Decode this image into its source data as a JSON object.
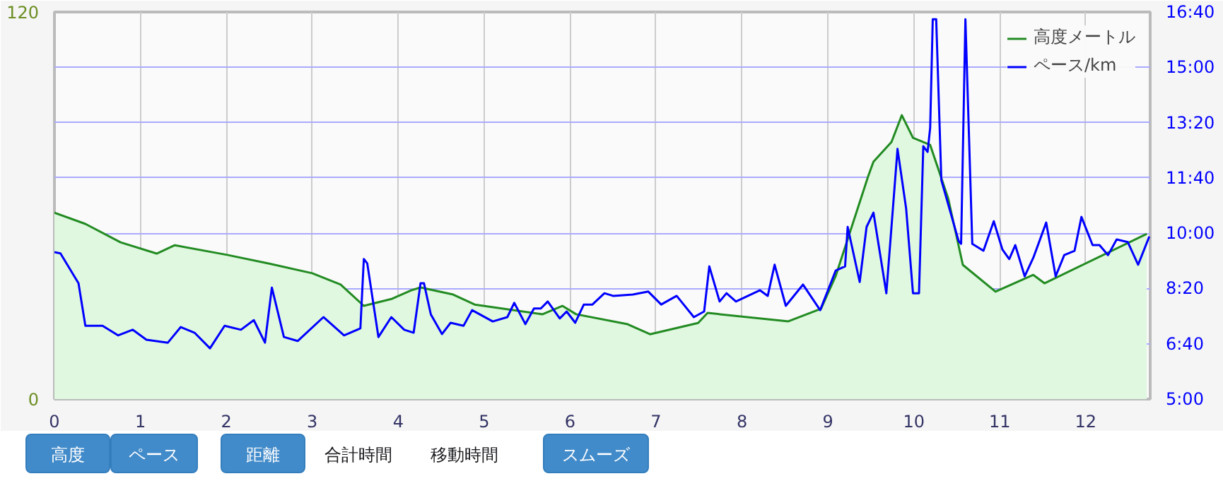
{
  "chart_data": {
    "type": "area",
    "xlim": [
      0,
      12.75
    ],
    "xticks": [
      0,
      1,
      2,
      3,
      4,
      5,
      6,
      7,
      8,
      9,
      10,
      11,
      12
    ],
    "ylim": [
      0,
      120
    ],
    "yticks": [
      0,
      120
    ],
    "y2lim": [
      5,
      16.667
    ],
    "y2ticks": [
      {
        "value": 5,
        "label": "5:00"
      },
      {
        "value": 6.667,
        "label": "6:40"
      },
      {
        "value": 8.333,
        "label": "8:20"
      },
      {
        "value": 10,
        "label": "10:00"
      },
      {
        "value": 11.667,
        "label": "11:40"
      },
      {
        "value": 13.333,
        "label": "13:20"
      },
      {
        "value": 15,
        "label": "15:00"
      },
      {
        "value": 16.667,
        "label": "16:40"
      }
    ],
    "grid": true,
    "legend": "top right",
    "annotations": [
      "高度",
      "ペース",
      "距離",
      "合計時間",
      "移動時間",
      "スムーズ"
    ],
    "series": [
      {
        "name": "高度メートル",
        "color": "#228b22",
        "x": [
          0,
          0.36,
          0.77,
          1.19,
          1.4,
          2.01,
          2.5,
          3.0,
          3.33,
          3.6,
          3.93,
          4.15,
          4.26,
          4.64,
          4.89,
          5.68,
          5.91,
          6.07,
          6.67,
          6.93,
          7.49,
          7.6,
          8.54,
          8.92,
          9.09,
          9.47,
          9.53,
          9.74,
          9.86,
          9.99,
          10.19,
          10.4,
          10.57,
          10.95,
          11.39,
          11.52,
          12.71
        ],
        "values": [
          57.8,
          54.3,
          48.6,
          45.1,
          47.7,
          44.7,
          42.0,
          39.0,
          35.5,
          28.9,
          31.1,
          33.7,
          34.6,
          32.4,
          29.3,
          26.3,
          28.9,
          26.3,
          23.2,
          20.1,
          23.6,
          26.7,
          24.1,
          28.0,
          38.1,
          69.2,
          73.6,
          79.7,
          88.0,
          81.0,
          78.8,
          62.2,
          41.6,
          33.3,
          38.5,
          35.9,
          51.2
        ]
      },
      {
        "name": "ペース/km",
        "type": "line",
        "axis": "y2",
        "color": "#0000ff",
        "x": [
          0,
          0.07,
          0.28,
          0.36,
          0.56,
          0.74,
          0.91,
          1.07,
          1.32,
          1.47,
          1.63,
          1.81,
          1.98,
          2.17,
          2.32,
          2.45,
          2.53,
          2.67,
          2.83,
          3.13,
          3.37,
          3.56,
          3.6,
          3.64,
          3.77,
          3.92,
          4.07,
          4.18,
          4.26,
          4.3,
          4.38,
          4.51,
          4.61,
          4.76,
          4.86,
          5.1,
          5.27,
          5.35,
          5.48,
          5.58,
          5.66,
          5.74,
          5.88,
          5.96,
          6.06,
          6.16,
          6.26,
          6.4,
          6.5,
          6.73,
          6.91,
          7.06,
          7.24,
          7.44,
          7.56,
          7.62,
          7.74,
          7.82,
          7.93,
          8.21,
          8.3,
          8.38,
          8.51,
          8.71,
          8.91,
          9.09,
          9.2,
          9.23,
          9.37,
          9.45,
          9.53,
          9.68,
          9.81,
          9.91,
          9.99,
          10.06,
          10.11,
          10.16,
          10.19,
          10.22,
          10.26,
          10.32,
          10.52,
          10.55,
          10.6,
          10.68,
          10.81,
          10.93,
          11.03,
          11.11,
          11.18,
          11.29,
          11.39,
          11.54,
          11.65,
          11.75,
          11.87,
          11.95,
          12.08,
          12.16,
          12.26,
          12.36,
          12.49,
          12.61,
          12.74
        ],
        "values": [
          9.43,
          9.39,
          8.49,
          7.21,
          7.21,
          6.92,
          7.09,
          6.79,
          6.7,
          7.17,
          7.0,
          6.53,
          7.21,
          7.09,
          7.38,
          6.7,
          8.36,
          6.87,
          6.75,
          7.47,
          6.92,
          7.13,
          9.22,
          9.09,
          6.87,
          7.47,
          7.09,
          7.0,
          8.49,
          8.49,
          7.55,
          6.96,
          7.3,
          7.21,
          7.68,
          7.34,
          7.47,
          7.9,
          7.26,
          7.73,
          7.73,
          7.94,
          7.43,
          7.64,
          7.3,
          7.85,
          7.85,
          8.19,
          8.11,
          8.15,
          8.24,
          7.85,
          8.11,
          7.47,
          7.64,
          9.0,
          7.94,
          8.19,
          7.94,
          8.28,
          8.11,
          9.05,
          7.81,
          8.45,
          7.68,
          8.87,
          9.0,
          10.19,
          8.53,
          10.19,
          10.62,
          8.19,
          12.54,
          10.75,
          8.19,
          8.19,
          12.62,
          12.45,
          13.18,
          16.45,
          16.45,
          11.6,
          9.77,
          9.68,
          16.45,
          9.68,
          9.47,
          10.36,
          9.51,
          9.22,
          9.64,
          8.7,
          9.26,
          10.32,
          8.7,
          9.34,
          9.47,
          10.49,
          9.64,
          9.64,
          9.34,
          9.81,
          9.73,
          9.05,
          9.9
        ]
      }
    ]
  }
}
